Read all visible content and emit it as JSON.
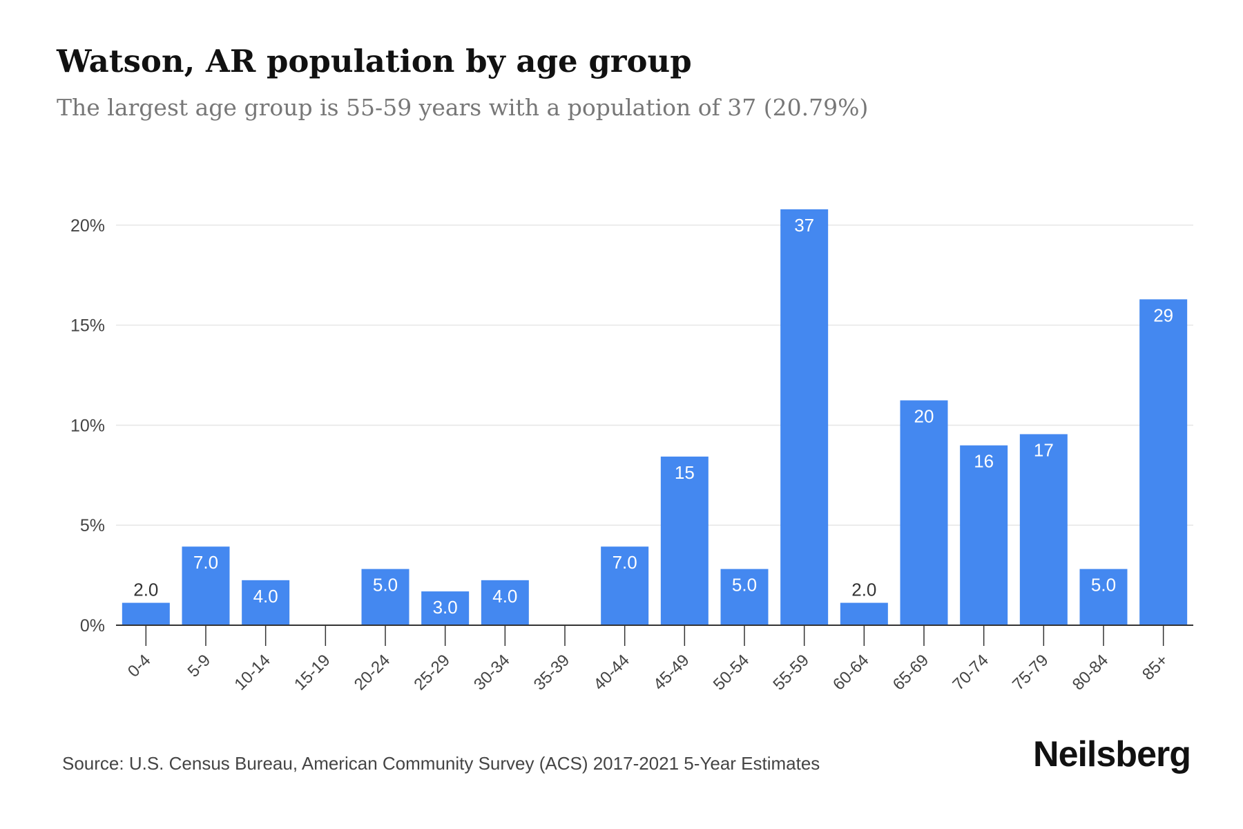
{
  "title": "Watson, AR population by age group",
  "subtitle": "The largest age group is 55-59 years with a population of 37 (20.79%)",
  "source": "Source: U.S. Census Bureau, American Community Survey (ACS) 2017-2021 5-Year Estimates",
  "brand": "Neilsberg",
  "colors": {
    "bar": "#4488f0",
    "label_inside": "#ffffff",
    "label_outside": "#333333",
    "grid": "#e6e6e6",
    "axis": "#333333",
    "tick_text": "#444444"
  },
  "chart_data": {
    "type": "bar",
    "categories": [
      "0-4",
      "5-9",
      "10-14",
      "15-19",
      "20-24",
      "25-29",
      "30-34",
      "35-39",
      "40-44",
      "45-49",
      "50-54",
      "55-59",
      "60-64",
      "65-69",
      "70-74",
      "75-79",
      "80-84",
      "85+"
    ],
    "values": [
      2,
      7,
      4,
      0,
      5,
      3,
      4,
      0,
      7,
      15,
      5,
      37,
      2,
      20,
      16,
      17,
      5,
      29
    ],
    "percent_values": [
      1.12,
      3.93,
      2.25,
      0,
      2.81,
      1.69,
      2.25,
      0,
      3.93,
      8.43,
      2.81,
      20.79,
      1.12,
      11.24,
      8.99,
      9.55,
      2.81,
      16.29
    ],
    "data_labels": [
      "2.0",
      "7.0",
      "4.0",
      "",
      "5.0",
      "3.0",
      "4.0",
      "",
      "7.0",
      "15",
      "5.0",
      "37",
      "2.0",
      "20",
      "16",
      "17",
      "5.0",
      "29"
    ],
    "y_ticks": [
      0,
      5,
      10,
      15,
      20
    ],
    "y_tick_labels": [
      "0%",
      "5%",
      "10%",
      "15%",
      "20%"
    ],
    "ylim": [
      0,
      20.79
    ],
    "grid": true,
    "legend": "none"
  }
}
